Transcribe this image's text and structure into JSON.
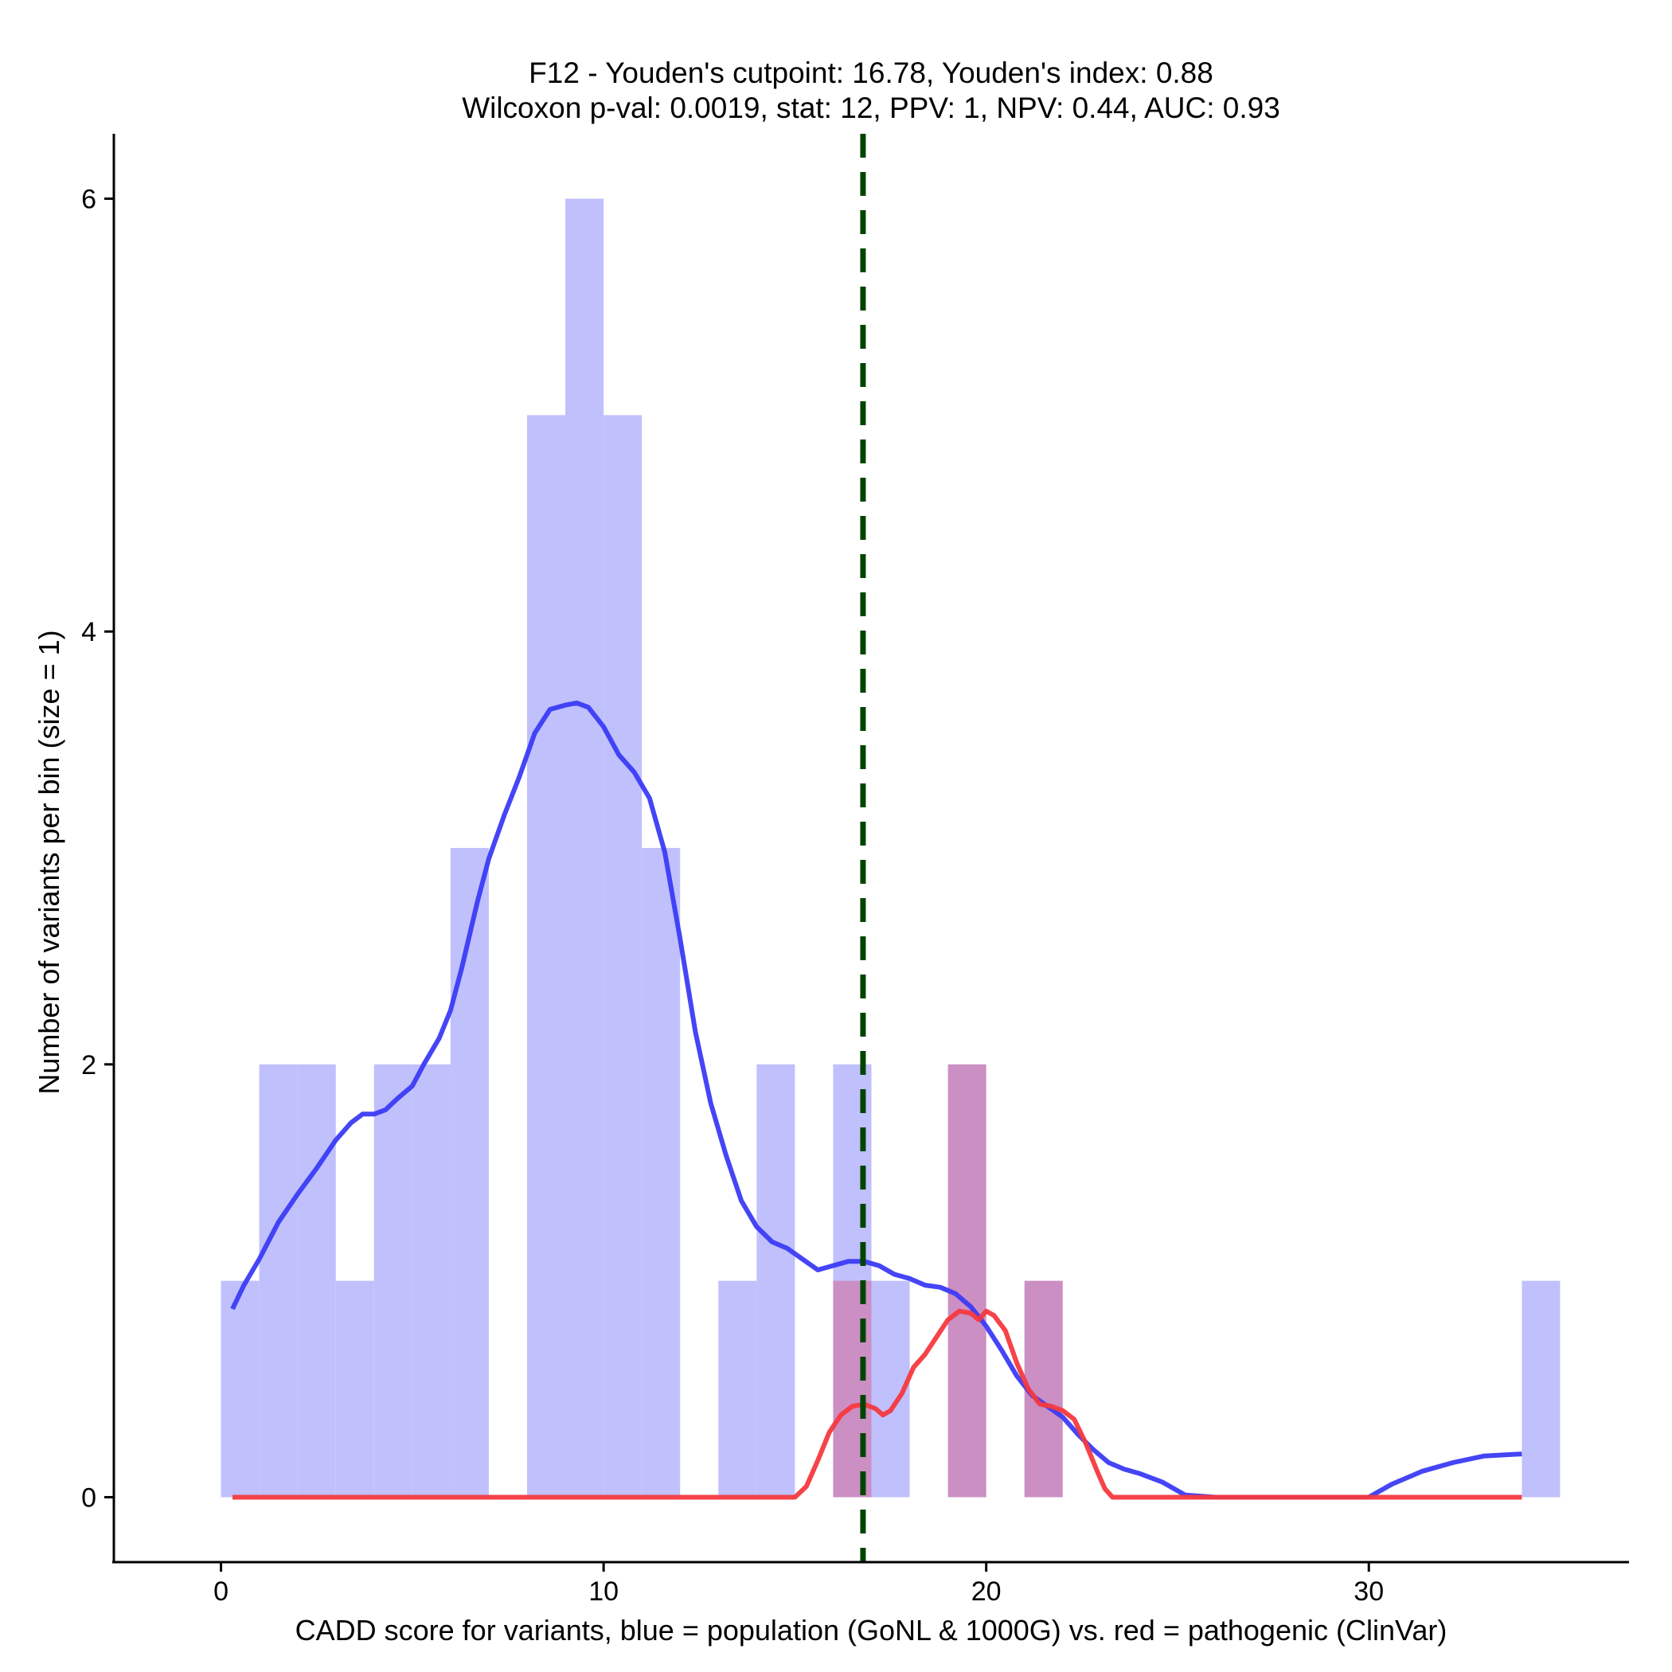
{
  "chart_data": {
    "type": "histogram",
    "title_line1": "F12 - Youden's cutpoint: 16.78, Youden's index: 0.88",
    "title_line2": "Wilcoxon p-val: 0.0019, stat: 12, PPV: 1, NPV: 0.44, AUC: 0.93",
    "xlabel": "CADD score for variants, blue = population (GoNL & 1000G) vs. red = pathogenic (ClinVar)",
    "ylabel": "Number of variants per bin (size = 1)",
    "xlim": [
      -2.8,
      36.8
    ],
    "ylim": [
      -0.3,
      6.3
    ],
    "xticks": [
      0,
      10,
      20,
      30
    ],
    "yticks": [
      0,
      2,
      4,
      6
    ],
    "bin_width": 1,
    "cutpoint": 16.78,
    "colors": {
      "population_bar": "#c0c0fd",
      "pathogenic_bar": "#cb8fc3",
      "population_density": "#3b3bf5",
      "pathogenic_density": "#f5393f",
      "cutpoint_line": "#004400"
    },
    "series": [
      {
        "key": "population",
        "bins": [
          {
            "x0": 0,
            "count": 1
          },
          {
            "x0": 1,
            "count": 2
          },
          {
            "x0": 2,
            "count": 2
          },
          {
            "x0": 3,
            "count": 1
          },
          {
            "x0": 4,
            "count": 2
          },
          {
            "x0": 5,
            "count": 2
          },
          {
            "x0": 6,
            "count": 3
          },
          {
            "x0": 8,
            "count": 5
          },
          {
            "x0": 9,
            "count": 6
          },
          {
            "x0": 10,
            "count": 5
          },
          {
            "x0": 11,
            "count": 3
          },
          {
            "x0": 13,
            "count": 1
          },
          {
            "x0": 14,
            "count": 2
          },
          {
            "x0": 16,
            "count": 2
          },
          {
            "x0": 17,
            "count": 1
          },
          {
            "x0": 34,
            "count": 1
          }
        ],
        "density": [
          [
            0.3,
            0.87
          ],
          [
            0.6,
            0.98
          ],
          [
            1.0,
            1.1
          ],
          [
            1.5,
            1.27
          ],
          [
            2.0,
            1.4
          ],
          [
            2.5,
            1.52
          ],
          [
            3.0,
            1.65
          ],
          [
            3.4,
            1.73
          ],
          [
            3.7,
            1.77
          ],
          [
            4.0,
            1.77
          ],
          [
            4.3,
            1.79
          ],
          [
            4.6,
            1.84
          ],
          [
            5.0,
            1.9
          ],
          [
            5.3,
            2.0
          ],
          [
            5.7,
            2.12
          ],
          [
            6.0,
            2.25
          ],
          [
            6.3,
            2.45
          ],
          [
            6.7,
            2.75
          ],
          [
            7.0,
            2.95
          ],
          [
            7.4,
            3.15
          ],
          [
            7.8,
            3.33
          ],
          [
            8.2,
            3.53
          ],
          [
            8.6,
            3.64
          ],
          [
            9.0,
            3.66
          ],
          [
            9.3,
            3.67
          ],
          [
            9.6,
            3.65
          ],
          [
            10.0,
            3.56
          ],
          [
            10.4,
            3.43
          ],
          [
            10.8,
            3.35
          ],
          [
            11.2,
            3.23
          ],
          [
            11.6,
            2.98
          ],
          [
            12.0,
            2.58
          ],
          [
            12.4,
            2.15
          ],
          [
            12.8,
            1.82
          ],
          [
            13.2,
            1.58
          ],
          [
            13.6,
            1.37
          ],
          [
            14.0,
            1.25
          ],
          [
            14.4,
            1.18
          ],
          [
            14.8,
            1.15
          ],
          [
            15.2,
            1.1
          ],
          [
            15.6,
            1.05
          ],
          [
            16.0,
            1.07
          ],
          [
            16.4,
            1.09
          ],
          [
            16.8,
            1.09
          ],
          [
            17.2,
            1.07
          ],
          [
            17.6,
            1.03
          ],
          [
            18.0,
            1.01
          ],
          [
            18.4,
            0.98
          ],
          [
            18.8,
            0.97
          ],
          [
            19.2,
            0.94
          ],
          [
            19.6,
            0.88
          ],
          [
            20.0,
            0.79
          ],
          [
            20.4,
            0.68
          ],
          [
            20.8,
            0.56
          ],
          [
            21.2,
            0.47
          ],
          [
            21.6,
            0.42
          ],
          [
            22.0,
            0.37
          ],
          [
            22.4,
            0.29
          ],
          [
            22.8,
            0.22
          ],
          [
            23.2,
            0.16
          ],
          [
            23.6,
            0.13
          ],
          [
            24.0,
            0.11
          ],
          [
            24.6,
            0.07
          ],
          [
            25.2,
            0.01
          ],
          [
            26.0,
            0.0
          ],
          [
            30.0,
            0.0
          ],
          [
            30.6,
            0.06
          ],
          [
            31.4,
            0.12
          ],
          [
            32.2,
            0.16
          ],
          [
            33.0,
            0.19
          ],
          [
            34.0,
            0.2
          ]
        ]
      },
      {
        "key": "pathogenic",
        "bins": [
          {
            "x0": 16,
            "count": 1
          },
          {
            "x0": 19,
            "count": 2
          },
          {
            "x0": 21,
            "count": 1
          }
        ],
        "density": [
          [
            0.3,
            0.0
          ],
          [
            15.0,
            0.0
          ],
          [
            15.3,
            0.05
          ],
          [
            15.6,
            0.17
          ],
          [
            15.9,
            0.3
          ],
          [
            16.2,
            0.38
          ],
          [
            16.5,
            0.42
          ],
          [
            16.8,
            0.43
          ],
          [
            17.1,
            0.41
          ],
          [
            17.3,
            0.38
          ],
          [
            17.5,
            0.4
          ],
          [
            17.8,
            0.48
          ],
          [
            18.1,
            0.6
          ],
          [
            18.4,
            0.66
          ],
          [
            18.7,
            0.74
          ],
          [
            19.0,
            0.82
          ],
          [
            19.3,
            0.86
          ],
          [
            19.6,
            0.85
          ],
          [
            19.8,
            0.82
          ],
          [
            20.0,
            0.86
          ],
          [
            20.2,
            0.84
          ],
          [
            20.5,
            0.77
          ],
          [
            20.8,
            0.62
          ],
          [
            21.1,
            0.5
          ],
          [
            21.4,
            0.43
          ],
          [
            21.7,
            0.42
          ],
          [
            22.0,
            0.4
          ],
          [
            22.3,
            0.36
          ],
          [
            22.6,
            0.25
          ],
          [
            22.9,
            0.12
          ],
          [
            23.1,
            0.04
          ],
          [
            23.3,
            0.0
          ],
          [
            34.0,
            0.0
          ]
        ]
      }
    ]
  }
}
